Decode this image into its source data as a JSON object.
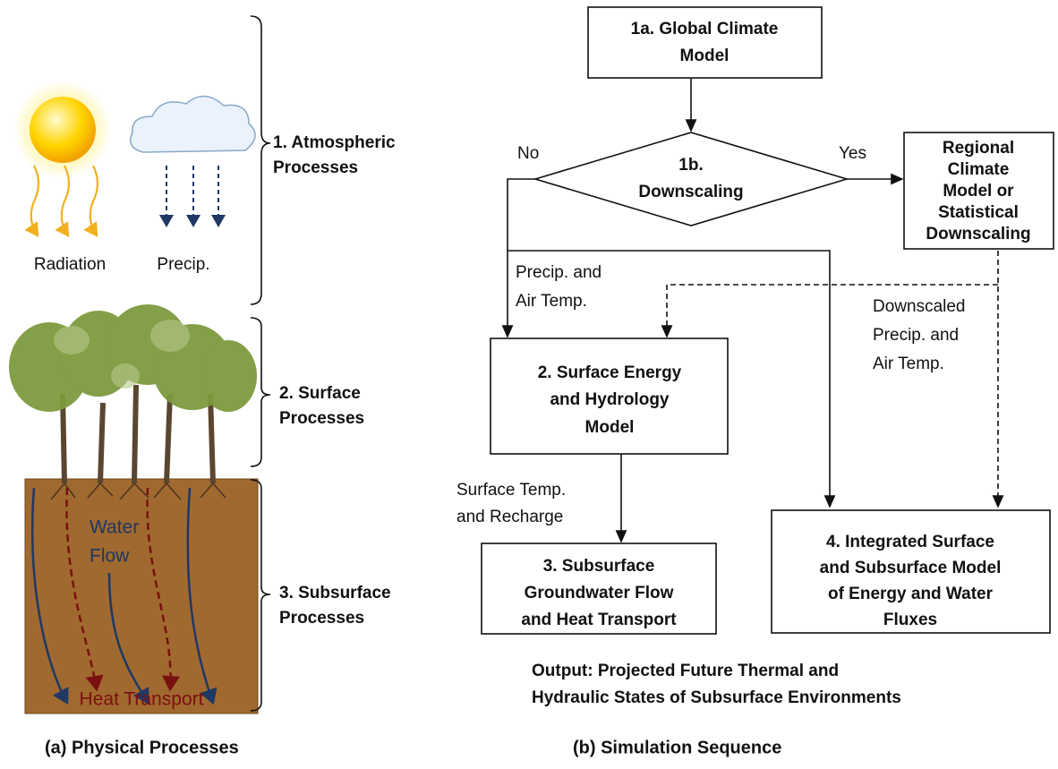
{
  "panel_a": {
    "caption": "(a) Physical Processes",
    "radiation": "Radiation",
    "precip": "Precip.",
    "water_flow": [
      "Water",
      "Flow"
    ],
    "heat_transport": "Heat Transport",
    "brackets": [
      [
        "1. Atmospheric",
        "Processes"
      ],
      [
        "2. Surface",
        "Processes"
      ],
      [
        "3. Subsurface",
        "Processes"
      ]
    ]
  },
  "panel_b": {
    "caption": "(b) Simulation Sequence",
    "nodes": [
      {
        "id": "1a",
        "label": [
          "1a. Global Climate",
          "Model"
        ]
      },
      {
        "id": "1b",
        "label": [
          "1b.",
          "Downscaling"
        ]
      },
      {
        "id": "rcm",
        "label": [
          "Regional",
          "Climate",
          "Model or",
          "Statistical",
          "Downscaling"
        ]
      },
      {
        "id": "2",
        "label": [
          "2. Surface Energy",
          "and Hydrology",
          "Model"
        ]
      },
      {
        "id": "3",
        "label": [
          "3. Subsurface",
          "Groundwater Flow",
          "and Heat Transport"
        ]
      },
      {
        "id": "4",
        "label": [
          "4. Integrated Surface",
          "and Subsurface Model",
          "of Energy and Water",
          "Fluxes"
        ]
      }
    ],
    "edge_labels": {
      "no": "No",
      "yes": "Yes",
      "precip_air": [
        "Precip. and",
        "Air Temp."
      ],
      "downscaled": [
        "Downscaled",
        "Precip. and",
        "Air Temp."
      ],
      "surface_temp": [
        "Surface Temp.",
        "and Recharge"
      ]
    },
    "output": [
      "Output: Projected Future Thermal and",
      "Hydraulic States of Subsurface Environments"
    ]
  }
}
